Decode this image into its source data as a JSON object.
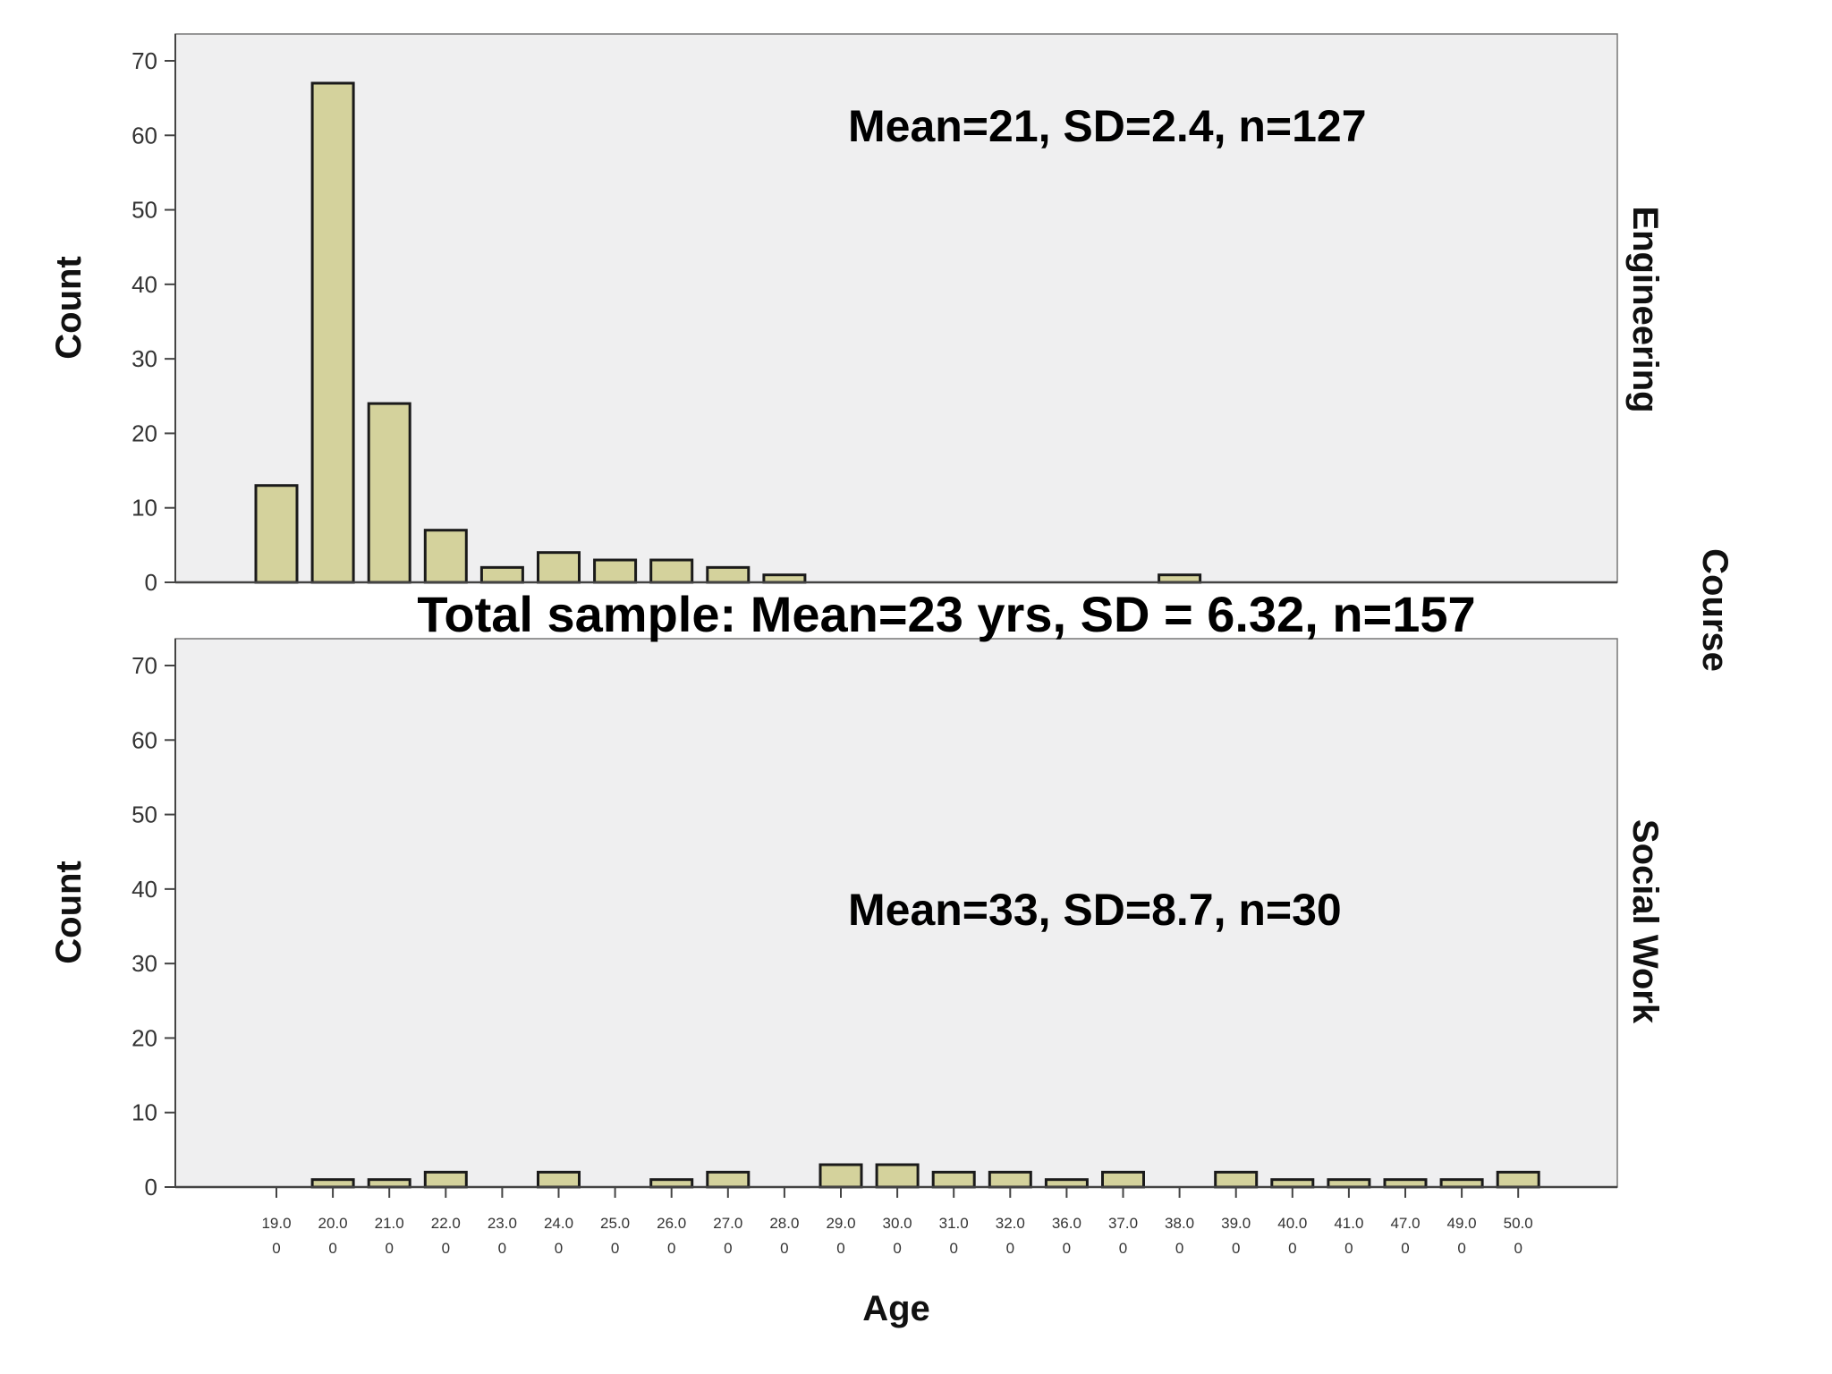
{
  "chart_data": {
    "type": "bar",
    "title": "Total sample: Mean=23 yrs, SD = 6.32, n=157",
    "xlabel": "Age",
    "ylabel": "Count",
    "row_variable": "Course",
    "ylim": [
      0,
      70
    ],
    "yticks": [
      "0",
      "10",
      "20",
      "30",
      "40",
      "50",
      "60",
      "70"
    ],
    "categories": [
      "19.00",
      "20.00",
      "21.00",
      "22.00",
      "23.00",
      "24.00",
      "25.00",
      "26.00",
      "27.00",
      "28.00",
      "29.00",
      "30.00",
      "31.00",
      "32.00",
      "36.00",
      "37.00",
      "38.00",
      "39.00",
      "40.00",
      "41.00",
      "47.00",
      "49.00",
      "50.00"
    ],
    "tick_lines": [
      [
        "19.0",
        "20.0",
        "21.0",
        "22.0",
        "23.0",
        "24.0",
        "25.0",
        "26.0",
        "27.0",
        "28.0",
        "29.0",
        "30.0",
        "31.0",
        "32.0",
        "36.0",
        "37.0",
        "38.0",
        "39.0",
        "40.0",
        "41.0",
        "47.0",
        "49.0",
        "50.0"
      ],
      [
        "0",
        "0",
        "0",
        "0",
        "0",
        "0",
        "0",
        "0",
        "0",
        "0",
        "0",
        "0",
        "0",
        "0",
        "0",
        "0",
        "0",
        "0",
        "0",
        "0",
        "0",
        "0",
        "0"
      ]
    ],
    "panels": [
      {
        "name": "Engineering",
        "annotation": "Mean=21, SD=2.4, n=127",
        "values": [
          13,
          67,
          24,
          7,
          2,
          4,
          3,
          3,
          2,
          1,
          0,
          0,
          0,
          0,
          0,
          0,
          1,
          0,
          0,
          0,
          0,
          0,
          0
        ]
      },
      {
        "name": "Social Work",
        "annotation": "Mean=33, SD=8.7, n=30",
        "values": [
          0,
          1,
          1,
          2,
          0,
          2,
          0,
          1,
          2,
          0,
          3,
          3,
          2,
          2,
          1,
          2,
          0,
          2,
          1,
          1,
          1,
          1,
          2
        ]
      }
    ],
    "colors": {
      "bar_fill": "#d4d29c",
      "bar_stroke": "#1a1a1a",
      "panel_bg": "#efeff0"
    }
  }
}
